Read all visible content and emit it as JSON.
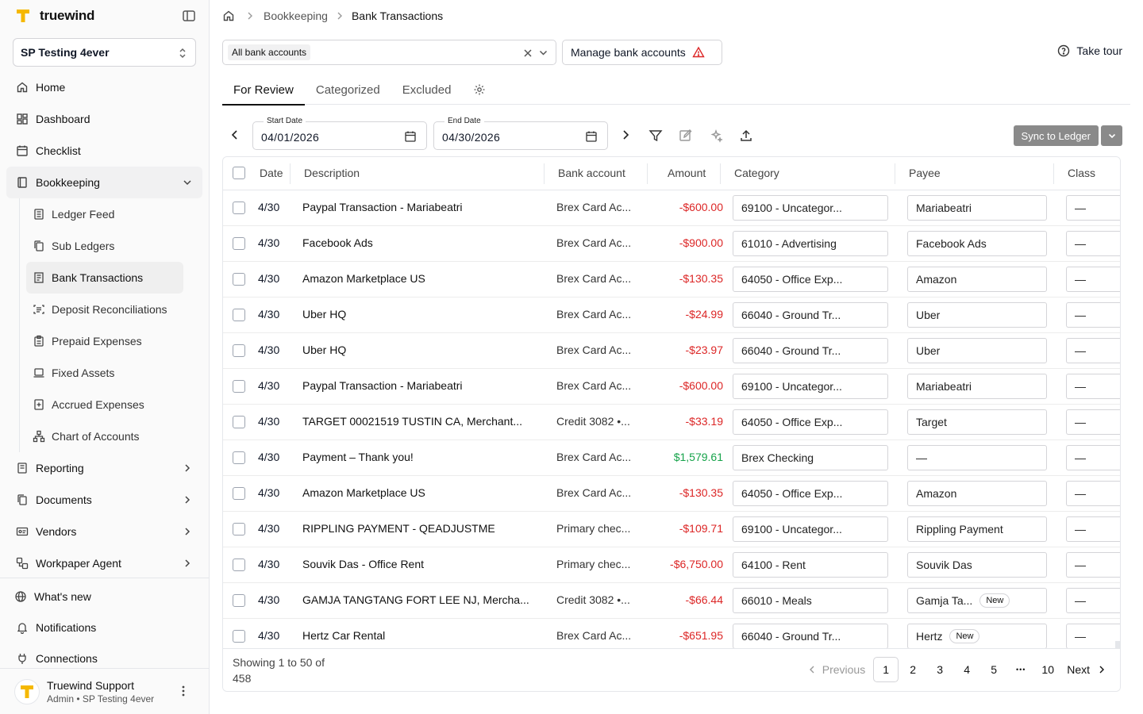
{
  "brand": {
    "name": "truewind"
  },
  "org": {
    "name": "SP Testing 4ever"
  },
  "nav": {
    "home": "Home",
    "dashboard": "Dashboard",
    "checklist": "Checklist",
    "bookkeeping": "Bookkeeping",
    "sub": {
      "ledger_feed": "Ledger Feed",
      "sub_ledgers": "Sub Ledgers",
      "bank_transactions": "Bank Transactions",
      "deposit_reconciliations": "Deposit Reconciliations",
      "prepaid_expenses": "Prepaid Expenses",
      "fixed_assets": "Fixed Assets",
      "accrued_expenses": "Accrued Expenses",
      "chart_of_accounts": "Chart of Accounts"
    },
    "reporting": "Reporting",
    "documents": "Documents",
    "vendors": "Vendors",
    "workpaper_agent": "Workpaper Agent",
    "whats_new": "What's new",
    "notifications": "Notifications",
    "connections": "Connections"
  },
  "user": {
    "name": "Truewind Support",
    "role": "Admin • SP Testing 4ever"
  },
  "breadcrumb": {
    "section": "Bookkeeping",
    "current": "Bank Transactions"
  },
  "account_filter": {
    "chip": "All bank accounts"
  },
  "manage_button": "Manage bank accounts",
  "tour_button": "Take tour",
  "tabs": {
    "for_review": "For Review",
    "categorized": "Categorized",
    "excluded": "Excluded"
  },
  "dates": {
    "start_label": "Start Date",
    "start_value": "04/01/2026",
    "end_label": "End Date",
    "end_value": "04/30/2026"
  },
  "sync_button": "Sync to Ledger",
  "columns": {
    "date": "Date",
    "description": "Description",
    "bank": "Bank account",
    "amount": "Amount",
    "category": "Category",
    "payee": "Payee",
    "class": "Class"
  },
  "rows": [
    {
      "date": "4/30",
      "desc": "Paypal Transaction - Mariabeatri",
      "bank": "Brex Card Ac...",
      "amount": "-$600.00",
      "sign": "neg",
      "category": "69100 - Uncategor...",
      "payee": "Mariabeatri",
      "payee_new": "",
      "cls": "—"
    },
    {
      "date": "4/30",
      "desc": "Facebook Ads",
      "bank": "Brex Card Ac...",
      "amount": "-$900.00",
      "sign": "neg",
      "category": "61010 - Advertising",
      "payee": "Facebook Ads",
      "payee_new": "",
      "cls": "—"
    },
    {
      "date": "4/30",
      "desc": "Amazon Marketplace US",
      "bank": "Brex Card Ac...",
      "amount": "-$130.35",
      "sign": "neg",
      "category": "64050 - Office Exp...",
      "payee": "Amazon",
      "payee_new": "",
      "cls": "—"
    },
    {
      "date": "4/30",
      "desc": "Uber HQ",
      "bank": "Brex Card Ac...",
      "amount": "-$24.99",
      "sign": "neg",
      "category": "66040 - Ground Tr...",
      "payee": "Uber",
      "payee_new": "",
      "cls": "—"
    },
    {
      "date": "4/30",
      "desc": "Uber HQ",
      "bank": "Brex Card Ac...",
      "amount": "-$23.97",
      "sign": "neg",
      "category": "66040 - Ground Tr...",
      "payee": "Uber",
      "payee_new": "",
      "cls": "—"
    },
    {
      "date": "4/30",
      "desc": "Paypal Transaction - Mariabeatri",
      "bank": "Brex Card Ac...",
      "amount": "-$600.00",
      "sign": "neg",
      "category": "69100 - Uncategor...",
      "payee": "Mariabeatri",
      "payee_new": "",
      "cls": "—"
    },
    {
      "date": "4/30",
      "desc": "TARGET 00021519 TUSTIN CA, Merchant...",
      "bank": "Credit 3082 •...",
      "amount": "-$33.19",
      "sign": "neg",
      "category": "64050 - Office Exp...",
      "payee": "Target",
      "payee_new": "",
      "cls": "—"
    },
    {
      "date": "4/30",
      "desc": "Payment – Thank you!",
      "bank": "Brex Card Ac...",
      "amount": "$1,579.61",
      "sign": "pos",
      "category": "Brex Checking",
      "payee": "—",
      "payee_new": "",
      "cls": "—"
    },
    {
      "date": "4/30",
      "desc": "Amazon Marketplace US",
      "bank": "Brex Card Ac...",
      "amount": "-$130.35",
      "sign": "neg",
      "category": "64050 - Office Exp...",
      "payee": "Amazon",
      "payee_new": "",
      "cls": "—"
    },
    {
      "date": "4/30",
      "desc": "RIPPLING PAYMENT - QEADJUSTME",
      "bank": "Primary chec...",
      "amount": "-$109.71",
      "sign": "neg",
      "category": "69100 - Uncategor...",
      "payee": "Rippling Payment",
      "payee_new": "",
      "cls": "—"
    },
    {
      "date": "4/30",
      "desc": "Souvik Das - Office Rent",
      "bank": "Primary chec...",
      "amount": "-$6,750.00",
      "sign": "neg",
      "category": "64100 - Rent",
      "payee": "Souvik Das",
      "payee_new": "",
      "cls": "—"
    },
    {
      "date": "4/30",
      "desc": "GAMJA TANGTANG FORT LEE NJ, Mercha...",
      "bank": "Credit 3082 •...",
      "amount": "-$66.44",
      "sign": "neg",
      "category": "66010 - Meals",
      "payee": "Gamja Ta...",
      "payee_new": "New",
      "cls": "—"
    },
    {
      "date": "4/30",
      "desc": "Hertz Car Rental",
      "bank": "Brex Card Ac...",
      "amount": "-$651.95",
      "sign": "neg",
      "category": "66040 - Ground Tr...",
      "payee": "Hertz",
      "payee_new": "New",
      "cls": "—"
    }
  ],
  "footer": {
    "showing_line1": "Showing 1 to 50 of",
    "showing_line2": "458"
  },
  "pagination": {
    "previous": "Previous",
    "pages": [
      "1",
      "2",
      "3",
      "4",
      "5"
    ],
    "ellipsis": "•••",
    "last": "10",
    "next": "Next"
  },
  "colors": {
    "accent_yellow": "#f5b800",
    "negative": "#dc2626",
    "positive": "#16a34a",
    "sync_button": "#8a8a8a"
  }
}
